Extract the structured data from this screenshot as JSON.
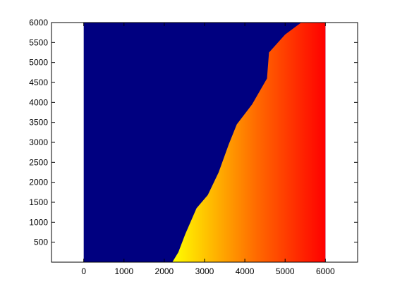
{
  "chart_data": {
    "type": "heatmap",
    "title": "",
    "xlabel": "",
    "ylabel": "",
    "xlim": [
      -800,
      6800
    ],
    "ylim": [
      0,
      6000
    ],
    "x_ticks": [
      0,
      1000,
      2000,
      3000,
      4000,
      5000,
      6000
    ],
    "y_ticks": [
      500,
      1000,
      1500,
      2000,
      2500,
      3000,
      3500,
      4000,
      4500,
      5000,
      5500,
      6000
    ],
    "image_extent": {
      "x": [
        0,
        6000
      ],
      "y": [
        0,
        6000
      ]
    },
    "grid": false,
    "colormap": "autumn",
    "colors": {
      "water": "#000080",
      "low": "#ffff00",
      "high": "#ff0000"
    },
    "coastline": [
      [
        2200,
        0
      ],
      [
        2350,
        250
      ],
      [
        2520,
        700
      ],
      [
        2800,
        1350
      ],
      [
        3080,
        1680
      ],
      [
        3350,
        2250
      ],
      [
        3600,
        2950
      ],
      [
        3800,
        3450
      ],
      [
        4180,
        3950
      ],
      [
        4550,
        4600
      ],
      [
        4600,
        5250
      ],
      [
        5000,
        5700
      ],
      [
        5400,
        6000
      ]
    ]
  }
}
